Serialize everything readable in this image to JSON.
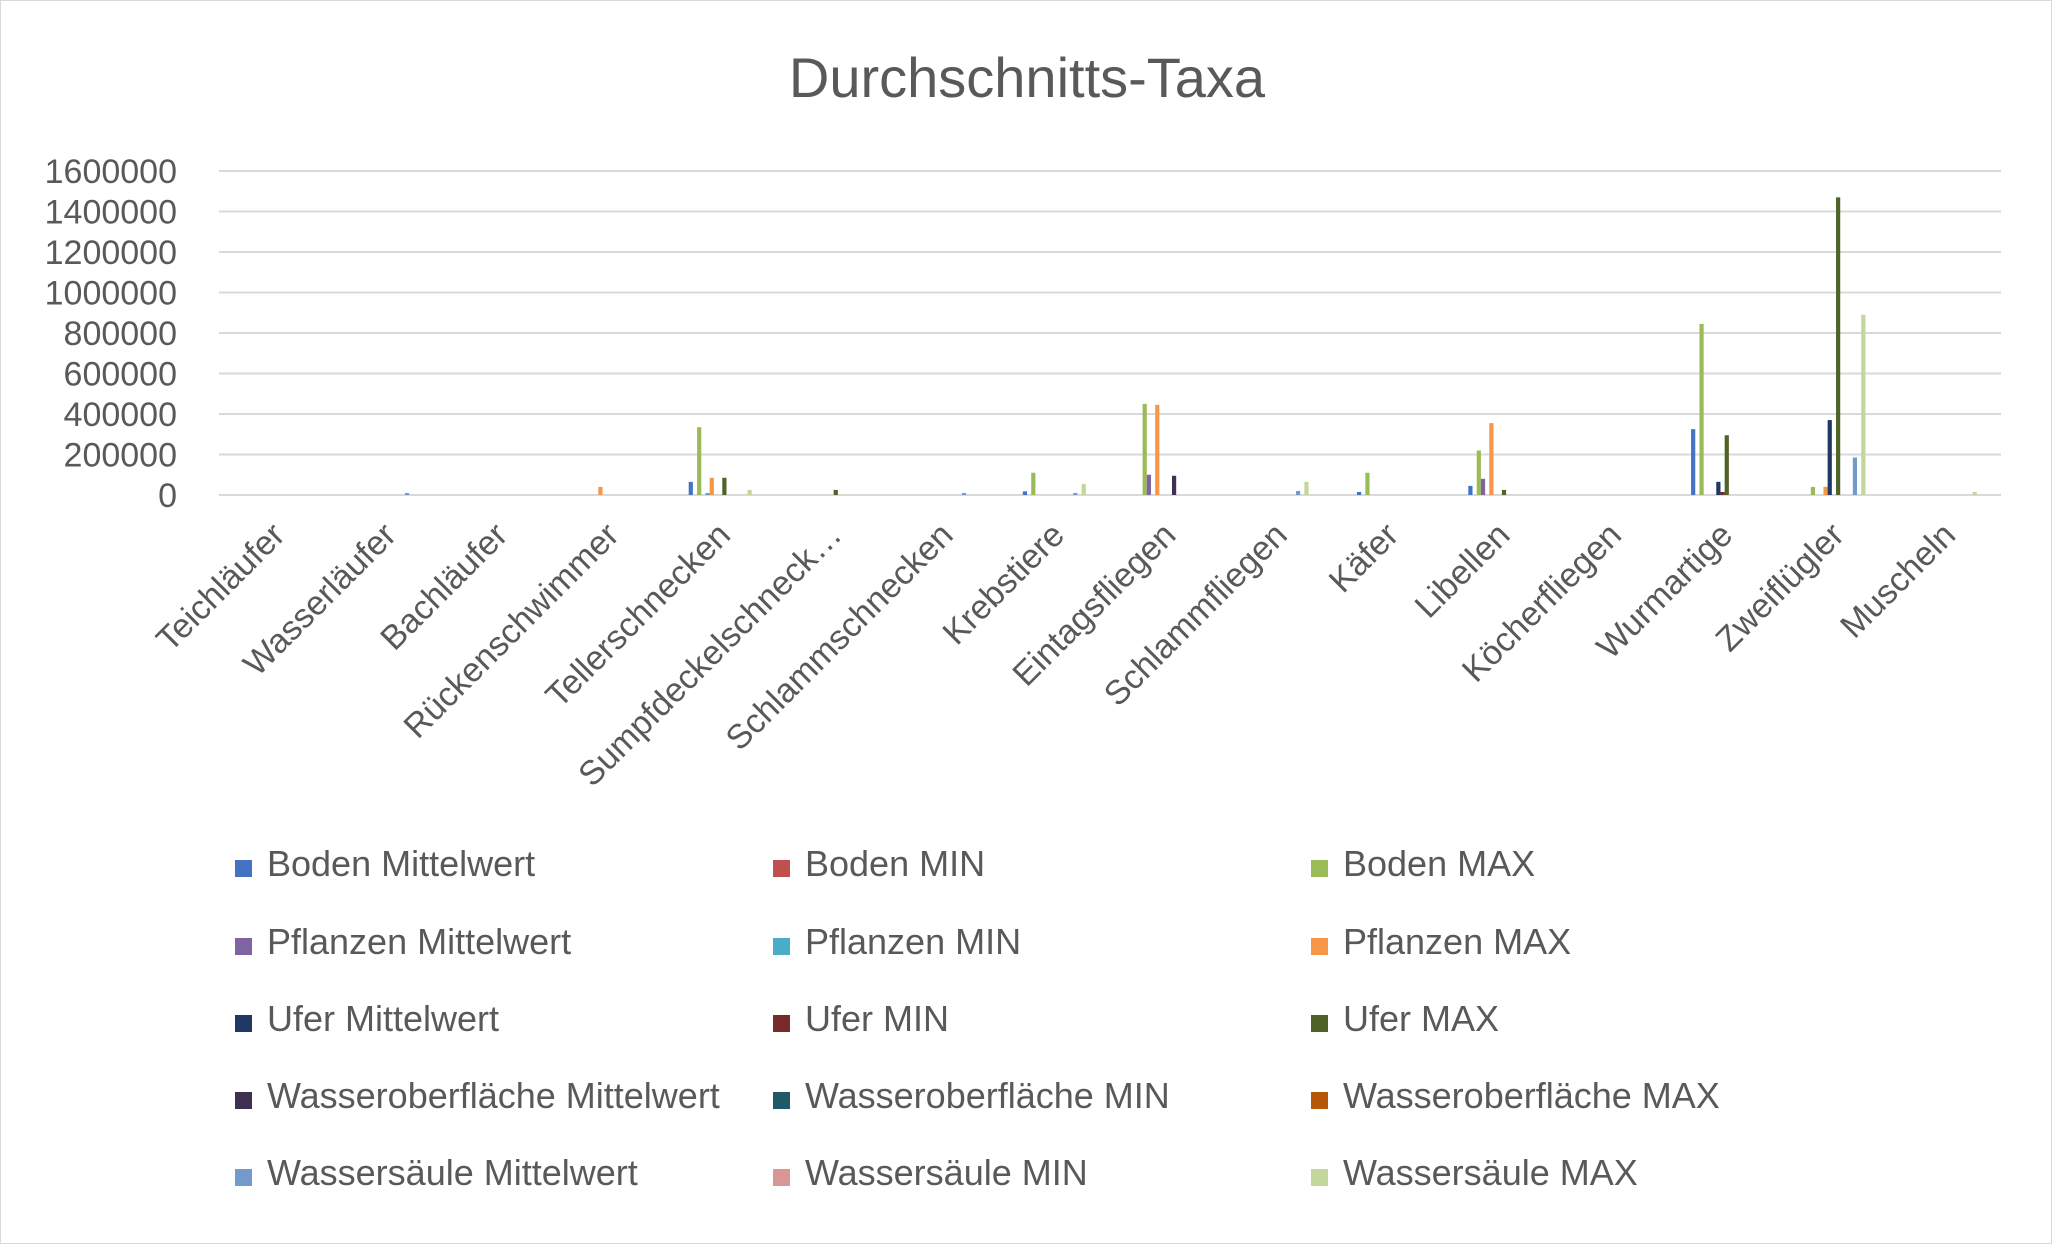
{
  "chart_data": {
    "type": "bar",
    "title": "Durchschnitts-Taxa",
    "xlabel": "",
    "ylabel": "",
    "ylim": [
      0,
      1600000
    ],
    "yticks": [
      0,
      200000,
      400000,
      600000,
      800000,
      1000000,
      1200000,
      1400000,
      1600000
    ],
    "grid": true,
    "legend_position": "bottom",
    "categories": [
      "Teichläufer",
      "Wasserläufer",
      "Bachläufer",
      "Rückenschwimmer",
      "Tellerschnecken",
      "Sumpfdeckelschneck…",
      "Schlammschnecken",
      "Krebstiere",
      "Eintagsfliegen",
      "Schlammfliegen",
      "Käfer",
      "Libellen",
      "Köcherfliegen",
      "Wurmartige",
      "Zweiflügler",
      "Muscheln"
    ],
    "series": [
      {
        "name": "Boden Mittelwert",
        "color": "#4472c4",
        "values": [
          0,
          0,
          0,
          0,
          65000,
          0,
          0,
          18000,
          0,
          0,
          15000,
          45000,
          0,
          325000,
          0,
          0
        ]
      },
      {
        "name": "Boden MIN",
        "color": "#c0504d",
        "values": [
          0,
          0,
          0,
          0,
          0,
          0,
          0,
          0,
          0,
          0,
          0,
          0,
          0,
          0,
          0,
          0
        ]
      },
      {
        "name": "Boden MAX",
        "color": "#9bbb59",
        "values": [
          0,
          0,
          0,
          0,
          335000,
          0,
          0,
          110000,
          450000,
          0,
          110000,
          220000,
          0,
          845000,
          40000,
          0
        ]
      },
      {
        "name": "Pflanzen Mittelwert",
        "color": "#8064a2",
        "values": [
          0,
          0,
          0,
          0,
          0,
          0,
          0,
          0,
          100000,
          0,
          0,
          80000,
          0,
          0,
          0,
          0
        ]
      },
      {
        "name": "Pflanzen MIN",
        "color": "#4bacc6",
        "values": [
          0,
          0,
          0,
          0,
          10000,
          0,
          0,
          0,
          0,
          0,
          0,
          0,
          0,
          0,
          0,
          0
        ]
      },
      {
        "name": "Pflanzen MAX",
        "color": "#f79646",
        "values": [
          0,
          0,
          0,
          40000,
          85000,
          0,
          0,
          0,
          445000,
          0,
          0,
          355000,
          0,
          0,
          40000,
          0
        ]
      },
      {
        "name": "Ufer Mittelwert",
        "color": "#1f3864",
        "values": [
          0,
          0,
          0,
          0,
          0,
          0,
          0,
          0,
          0,
          0,
          0,
          0,
          0,
          65000,
          370000,
          0
        ]
      },
      {
        "name": "Ufer MIN",
        "color": "#772c2a",
        "values": [
          0,
          0,
          0,
          0,
          0,
          0,
          0,
          0,
          0,
          0,
          0,
          0,
          0,
          15000,
          0,
          0
        ]
      },
      {
        "name": "Ufer MAX",
        "color": "#4f6228",
        "values": [
          0,
          0,
          0,
          0,
          85000,
          25000,
          0,
          0,
          0,
          0,
          0,
          25000,
          0,
          295000,
          1470000,
          0
        ]
      },
      {
        "name": "Wasseroberfläche Mittelwert",
        "color": "#3f3151",
        "values": [
          0,
          0,
          0,
          0,
          0,
          0,
          0,
          0,
          95000,
          0,
          0,
          0,
          0,
          0,
          0,
          0
        ]
      },
      {
        "name": "Wasseroberfläche MIN",
        "color": "#215968",
        "values": [
          0,
          0,
          0,
          0,
          0,
          0,
          0,
          0,
          0,
          0,
          0,
          0,
          0,
          0,
          0,
          0
        ]
      },
      {
        "name": "Wasseroberfläche MAX",
        "color": "#b65708",
        "values": [
          0,
          0,
          0,
          0,
          0,
          0,
          0,
          0,
          0,
          0,
          0,
          0,
          0,
          0,
          0,
          0
        ]
      },
      {
        "name": "Wassersäule Mittelwert",
        "color": "#729aca",
        "values": [
          0,
          10000,
          0,
          0,
          0,
          0,
          10000,
          10000,
          0,
          20000,
          0,
          0,
          0,
          0,
          185000,
          0
        ]
      },
      {
        "name": "Wassersäule MIN",
        "color": "#d99694",
        "values": [
          0,
          0,
          0,
          0,
          0,
          0,
          0,
          0,
          0,
          0,
          0,
          0,
          0,
          0,
          0,
          0
        ]
      },
      {
        "name": "Wassersäule MAX",
        "color": "#c3d69b",
        "values": [
          0,
          0,
          0,
          0,
          25000,
          0,
          0,
          55000,
          0,
          65000,
          0,
          0,
          0,
          0,
          890000,
          15000
        ]
      }
    ]
  }
}
